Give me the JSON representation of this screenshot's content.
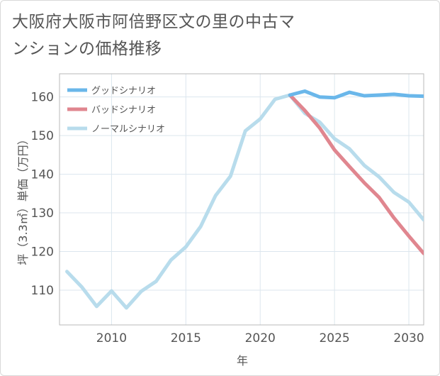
{
  "title": "大阪府大阪市阿倍野区文の里の中古マンションの価格推移",
  "chart_data": {
    "type": "line",
    "title": "大阪府大阪市阿倍野区文の里の中古マンションの価格推移",
    "xlabel": "年",
    "ylabel": "坪（3.3㎡）単価（万円）",
    "xlim": [
      2006.5,
      2031
    ],
    "ylim": [
      101,
      166
    ],
    "xticks": [
      2010,
      2015,
      2020,
      2025,
      2030
    ],
    "yticks": [
      110,
      120,
      130,
      140,
      150,
      160
    ],
    "legend_position": "top-left",
    "series": [
      {
        "name": "グッドシナリオ",
        "color": "#6ab7ea",
        "x": [
          2022,
          2023,
          2024,
          2025,
          2026,
          2027,
          2028,
          2029,
          2030,
          2031
        ],
        "values": [
          160.5,
          161.5,
          160,
          159.8,
          161.2,
          160.3,
          160.5,
          160.7,
          160.3,
          160.2
        ]
      },
      {
        "name": "バッドシナリオ",
        "color": "#e0868f",
        "x": [
          2022,
          2023,
          2024,
          2025,
          2026,
          2027,
          2028,
          2029,
          2030,
          2031
        ],
        "values": [
          160.5,
          156.5,
          152,
          146.3,
          142,
          137.8,
          134,
          128.7,
          124,
          119.5
        ]
      },
      {
        "name": "ノーマルシナリオ",
        "color": "#b8dcec",
        "x": [
          2007,
          2008,
          2009,
          2010,
          2011,
          2012,
          2013,
          2014,
          2015,
          2016,
          2017,
          2018,
          2019,
          2020,
          2021,
          2022,
          2023,
          2024,
          2025,
          2026,
          2027,
          2028,
          2029,
          2030,
          2031
        ],
        "values": [
          114.8,
          110.8,
          105.8,
          109.8,
          105.4,
          109.7,
          112.3,
          117.8,
          121.2,
          126.5,
          134.5,
          139.5,
          151.2,
          154.3,
          159.4,
          160.5,
          155.8,
          153.5,
          149.2,
          146.6,
          142.3,
          139.3,
          135.3,
          132.8,
          128.2
        ]
      }
    ]
  }
}
